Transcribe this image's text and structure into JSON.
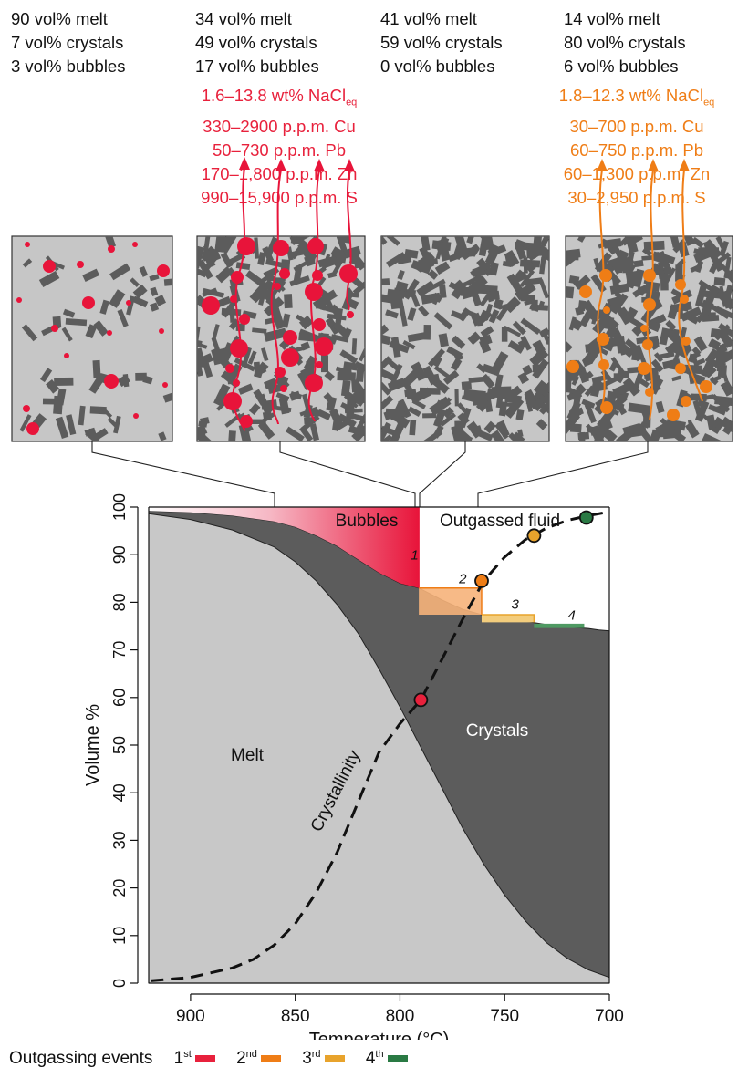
{
  "phases": [
    {
      "melt": "90 vol% melt",
      "crystals": "7 vol% crystals",
      "bubbles": "3 vol% bubbles"
    },
    {
      "melt": "34 vol% melt",
      "crystals": "49 vol% crystals",
      "bubbles": "17 vol% bubbles"
    },
    {
      "melt": "41 vol% melt",
      "crystals": "59 vol% crystals",
      "bubbles": "0 vol% bubbles"
    },
    {
      "melt": "14 vol% melt",
      "crystals": "80 vol% crystals",
      "bubbles": "6 vol% bubbles"
    }
  ],
  "fluids": [
    {
      "nacl": "1.6–13.8 wt% NaCl",
      "nacl_sub": "eq",
      "cu": "330–2900 p.p.m. Cu",
      "pb": "50–730 p.p.m. Pb",
      "zn": "170–1,800 p.p.m. Zn",
      "s": "990–15,900 p.p.m. S",
      "color": "#e8213c"
    },
    {
      "nacl": "1.8–12.3 wt% NaCl",
      "nacl_sub": "eq",
      "cu": "30–700 p.p.m. Cu",
      "pb": "60–750 p.p.m. Pb",
      "zn": "60–1,300 p.p.m. Zn",
      "s": "30–2,950 p.p.m. S",
      "color": "#ef7d16"
    }
  ],
  "chart_data": {
    "type": "area",
    "xlabel": "Temperature (°C)",
    "ylabel": "Volume %",
    "xlim": [
      920,
      700
    ],
    "ylim": [
      0,
      100
    ],
    "xticks": [
      900,
      850,
      800,
      750,
      700
    ],
    "yticks": [
      0,
      10,
      20,
      30,
      40,
      50,
      60,
      70,
      80,
      90,
      100
    ],
    "x_reversed": true,
    "region_labels": {
      "bubbles": "Bubbles",
      "outgassed": "Outgassed fluid",
      "crystals": "Crystals",
      "melt": "Melt",
      "curve": "Crystallinity"
    },
    "melt_upper": {
      "x": [
        920,
        900,
        880,
        860,
        850,
        840,
        830,
        820,
        810,
        800,
        790,
        780,
        770,
        760,
        750,
        740,
        730,
        720,
        710,
        700
      ],
      "y": [
        98.6,
        97.4,
        95.2,
        91.6,
        88.5,
        84.5,
        79.5,
        73.5,
        66,
        58,
        49.5,
        41,
        32.5,
        25,
        18.5,
        13,
        8.5,
        5.2,
        2.8,
        1.2
      ]
    },
    "crystal_upper": {
      "x": [
        920,
        900,
        880,
        860,
        850,
        840,
        830,
        820,
        810,
        800,
        791,
        780,
        770,
        761,
        750,
        740,
        730,
        720,
        710,
        705,
        700
      ],
      "y": [
        99.2,
        98.9,
        98.2,
        97.0,
        95.8,
        94.0,
        91.8,
        89.0,
        86.2,
        84.0,
        83.0,
        80.5,
        78.5,
        77.4,
        76.8,
        76.0,
        75.3,
        74.8,
        74.5,
        74.2,
        74.0
      ]
    },
    "crystallinity_curve": {
      "x": [
        919,
        900,
        880,
        870,
        860,
        850,
        840,
        830,
        820,
        810,
        800,
        790,
        780,
        770,
        760,
        750,
        740,
        730,
        720,
        710,
        700
      ],
      "y": [
        0.5,
        1.2,
        3.2,
        5.0,
        8.0,
        12.5,
        19.0,
        27.5,
        38.0,
        48.5,
        54.5,
        59.5,
        68,
        76.5,
        84.5,
        89.5,
        93.2,
        95.6,
        97.2,
        98.2,
        99.0
      ]
    },
    "events": [
      {
        "label": "1",
        "color": "#e8213c",
        "marker": [
          790,
          59.5
        ]
      },
      {
        "label": "2",
        "color": "#ef7d16",
        "marker": [
          761,
          84.5
        ]
      },
      {
        "label": "3",
        "color": "#e8a32c",
        "marker": [
          736,
          94
        ]
      },
      {
        "label": "4",
        "color": "#2a7a44",
        "marker": [
          711,
          97.8
        ]
      }
    ],
    "legend": {
      "title": "Outgassing events",
      "items": [
        {
          "label": "1",
          "sup": "st",
          "color": "#e8213c"
        },
        {
          "label": "2",
          "sup": "nd",
          "color": "#ef7d16"
        },
        {
          "label": "3",
          "sup": "rd",
          "color": "#e8a32c"
        },
        {
          "label": "4",
          "sup": "th",
          "color": "#2a7a44"
        }
      ]
    }
  }
}
